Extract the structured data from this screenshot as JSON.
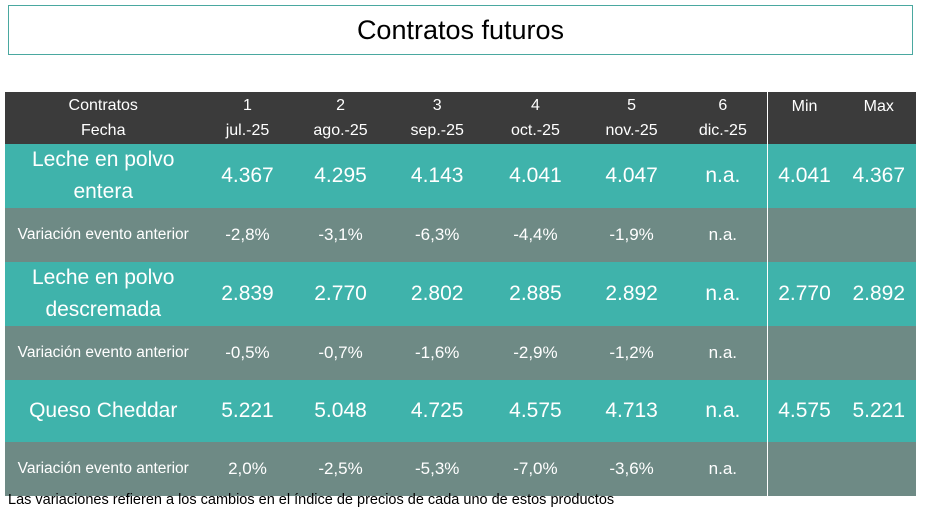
{
  "title": "Contratos futuros",
  "header": {
    "row1_label": "Contratos",
    "row2_label": "Fecha",
    "contracts": [
      {
        "num": "1",
        "date": "jul.-25"
      },
      {
        "num": "2",
        "date": "ago.-25"
      },
      {
        "num": "3",
        "date": "sep.-25"
      },
      {
        "num": "4",
        "date": "oct.-25"
      },
      {
        "num": "5",
        "date": "nov.-25"
      },
      {
        "num": "6",
        "date": "dic.-25"
      }
    ],
    "min_label": "Min",
    "max_label": "Max"
  },
  "rows": [
    {
      "product": "Leche en polvo entera",
      "values": [
        "4.367",
        "4.295",
        "4.143",
        "4.041",
        "4.047",
        "n.a."
      ],
      "min": "4.041",
      "max": "4.367",
      "variation_label": "Variación evento anterior",
      "variations": [
        "-2,8%",
        "-3,1%",
        "-6,3%",
        "-4,4%",
        "-1,9%",
        "n.a."
      ]
    },
    {
      "product": "Leche en polvo descremada",
      "values": [
        "2.839",
        "2.770",
        "2.802",
        "2.885",
        "2.892",
        "n.a."
      ],
      "min": "2.770",
      "max": "2.892",
      "variation_label": "Variación evento anterior",
      "variations": [
        "-0,5%",
        "-0,7%",
        "-1,6%",
        "-2,9%",
        "-1,2%",
        "n.a."
      ]
    },
    {
      "product": "Queso Cheddar",
      "values": [
        "5.221",
        "5.048",
        "4.725",
        "4.575",
        "4.713",
        "n.a."
      ],
      "min": "4.575",
      "max": "5.221",
      "variation_label": "Variación evento anterior",
      "variations": [
        "2,0%",
        "-2,5%",
        "-5,3%",
        "-7,0%",
        "-3,6%",
        "n.a."
      ]
    }
  ],
  "footnote": "Las variaciones refieren a los cambios en el índice de precios de cada uno de estos productos",
  "colors": {
    "header_bg": "#3b3b3b",
    "product_row_bg": "#3fb3ab",
    "variation_row_bg": "#6e8a85",
    "title_border": "#4aa8a0"
  }
}
